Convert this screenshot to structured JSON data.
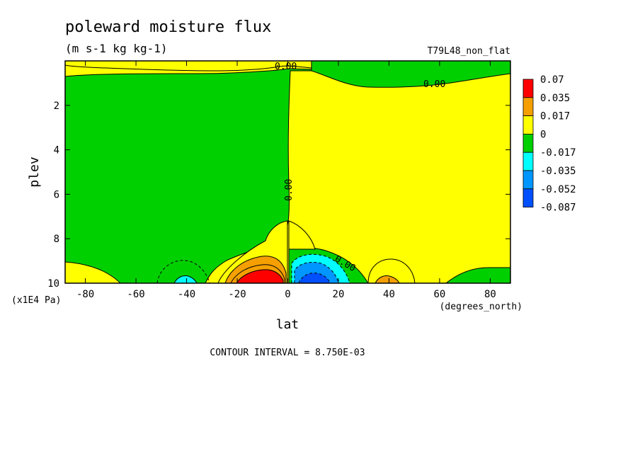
{
  "chart_data": {
    "type": "heatmap",
    "title": "poleward moisture flux",
    "subtitle": "(m s-1 kg kg-1)",
    "run_label": "T79L48_non_flat",
    "xlabel": "lat",
    "x_units": "(degrees_north)",
    "ylabel": "plev",
    "y_units": "(x1E4 Pa)",
    "xlim": [
      -88,
      88
    ],
    "ylim": [
      10,
      0
    ],
    "x_ticks": [
      -80,
      -60,
      -40,
      -20,
      0,
      20,
      40,
      60,
      80
    ],
    "y_ticks": [
      2,
      4,
      6,
      8,
      10
    ],
    "x_tick_labels": [
      "-80",
      "-60",
      "-40",
      "-20",
      "0",
      "20",
      "40",
      "60",
      "80"
    ],
    "y_tick_labels": [
      "2",
      "4",
      "6",
      "8",
      "10"
    ],
    "contour_interval_text": "CONTOUR INTERVAL = 8.750E-03",
    "contour_labels": [
      "0.00",
      "0.00",
      "0.00",
      "0.00"
    ],
    "legend": {
      "placement": "right",
      "levels": [
        "0.07",
        "0.035",
        "0.017",
        "0",
        "-0.017",
        "-0.035",
        "-0.052",
        "-0.087"
      ],
      "colors": [
        "#ff0000",
        "#f5a000",
        "#ffff00",
        "#00d000",
        "#00ffff",
        "#0096ff",
        "#0050ff"
      ]
    },
    "regions": [
      {
        "sign": "positive",
        "lat_range": [
          -88,
          -1
        ],
        "plev_range": [
          0,
          1
        ],
        "level": "0 to 0.017"
      },
      {
        "sign": "negative",
        "lat_range": [
          -88,
          -1
        ],
        "plev_range": [
          1,
          9.5
        ],
        "level": "-0.017 to 0"
      },
      {
        "sign": "positive",
        "lat_range": [
          0,
          88
        ],
        "plev_range": [
          0.8,
          10
        ],
        "level": "0 to 0.017"
      },
      {
        "sign": "positive",
        "lat_range": [
          -30,
          0
        ],
        "plev_range": [
          7.5,
          10
        ],
        "level": "up to 0.07",
        "peak_lat": -12,
        "peak_plev": 9.8
      },
      {
        "sign": "negative",
        "lat_range": [
          1,
          30
        ],
        "plev_range": [
          8.5,
          10
        ],
        "level": "down to -0.087",
        "peak_lat": 12,
        "peak_plev": 9.8
      },
      {
        "sign": "negative",
        "lat_range": [
          -45,
          -35
        ],
        "plev_range": [
          9.5,
          10
        ],
        "level": "-0.035 to -0.017"
      },
      {
        "sign": "positive",
        "lat_range": [
          36,
          48
        ],
        "plev_range": [
          9.5,
          10
        ],
        "level": "0.017 to 0.035"
      },
      {
        "sign": "negative",
        "lat_range": [
          60,
          88
        ],
        "plev_range": [
          9.2,
          10
        ],
        "level": "-0.017 to 0"
      }
    ]
  }
}
